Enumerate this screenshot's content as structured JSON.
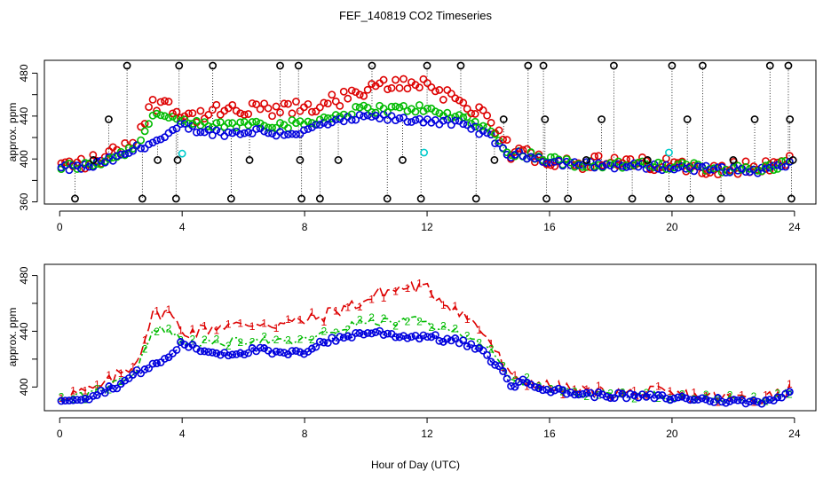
{
  "chart_data": [
    {
      "type": "scatter",
      "title": "FEF_140819  CO2 Timeseries",
      "xlabel": "",
      "ylabel": "approx. ppm",
      "xlim": [
        -0.5,
        24.7
      ],
      "ylim": [
        358,
        492
      ],
      "xticks": [
        0,
        4,
        8,
        12,
        16,
        20,
        24
      ],
      "yticks": [
        360,
        400,
        440,
        480
      ],
      "marker": "open circle",
      "series_colors": {
        "series1": "#dd0000",
        "series2": "#00bb00",
        "series3": "#0000dd",
        "out_of_range": "#000000",
        "flagged": "#00cccc"
      },
      "spike_markers": {
        "high_value": 487,
        "low_value": 363,
        "high_x": [
          2.2,
          3.9,
          5.0,
          7.2,
          7.8,
          10.2,
          12.0,
          13.1,
          15.3,
          15.8,
          18.1,
          20.0,
          21.0,
          23.2,
          23.8
        ],
        "low_x": [
          0.5,
          2.7,
          3.8,
          5.6,
          7.9,
          8.5,
          10.7,
          11.8,
          13.6,
          15.9,
          16.6,
          18.7,
          19.9,
          20.6,
          21.6,
          23.9
        ],
        "mid_points": [
          {
            "x": 1.6,
            "y": 437
          },
          {
            "x": 3.2,
            "y": 399
          },
          {
            "x": 3.85,
            "y": 399
          },
          {
            "x": 6.2,
            "y": 399
          },
          {
            "x": 7.85,
            "y": 399
          },
          {
            "x": 9.1,
            "y": 399
          },
          {
            "x": 11.2,
            "y": 399
          },
          {
            "x": 14.2,
            "y": 399
          },
          {
            "x": 14.5,
            "y": 437
          },
          {
            "x": 15.85,
            "y": 437
          },
          {
            "x": 17.2,
            "y": 399
          },
          {
            "x": 17.7,
            "y": 437
          },
          {
            "x": 19.2,
            "y": 399
          },
          {
            "x": 20.5,
            "y": 437
          },
          {
            "x": 22.0,
            "y": 399
          },
          {
            "x": 22.7,
            "y": 437
          },
          {
            "x": 23.85,
            "y": 437
          },
          {
            "x": 23.95,
            "y": 399
          },
          {
            "x": 1.1,
            "y": 399
          }
        ],
        "cyan_points": [
          {
            "x": 4.0,
            "y": 405
          },
          {
            "x": 11.9,
            "y": 406
          },
          {
            "x": 19.9,
            "y": 406
          }
        ]
      }
    },
    {
      "type": "line",
      "title": "",
      "xlabel": "Hour of Day (UTC)",
      "ylabel": "approx. ppm",
      "xlim": [
        -0.5,
        24.7
      ],
      "ylim": [
        383,
        488
      ],
      "xticks": [
        0,
        4,
        8,
        12,
        16,
        20,
        24
      ],
      "yticks": [
        400,
        440,
        480
      ],
      "series_labels": [
        "1",
        "2",
        "3"
      ],
      "series_colors": [
        "#dd0000",
        "#00bb00",
        "#0000dd"
      ],
      "marker_series3": "open circle"
    }
  ],
  "shared_profile": {
    "x": [
      0.0,
      1.0,
      1.5,
      2.0,
      2.5,
      3.0,
      3.5,
      4.0,
      4.5,
      5.0,
      5.5,
      6.0,
      6.5,
      7.0,
      7.5,
      8.0,
      8.5,
      9.0,
      9.5,
      10.0,
      10.5,
      11.0,
      11.5,
      12.0,
      12.5,
      13.0,
      13.5,
      14.0,
      14.5,
      14.8,
      15.0,
      15.5,
      16.0,
      17.0,
      18.0,
      19.0,
      19.6,
      19.8,
      20.5,
      21.0,
      22.0,
      22.5,
      23.0,
      23.5,
      23.8
    ],
    "series3": [
      391,
      393,
      398,
      402,
      410,
      415,
      420,
      432,
      427,
      425,
      424,
      425,
      427,
      424,
      424,
      425,
      432,
      434,
      437,
      439,
      439,
      437,
      436,
      437,
      434,
      433,
      429,
      422,
      410,
      400,
      404,
      402,
      398,
      395,
      394,
      393,
      393,
      392,
      392,
      391,
      390,
      389,
      390,
      393,
      395
    ],
    "series2": [
      392,
      394,
      399,
      405,
      412,
      440,
      442,
      433,
      432,
      431,
      432,
      433,
      435,
      432,
      432,
      434,
      437,
      440,
      444,
      447,
      447,
      446,
      448,
      446,
      441,
      440,
      436,
      427,
      413,
      402,
      405,
      403,
      399,
      396,
      395,
      394,
      394,
      393,
      393,
      392,
      391,
      390,
      391,
      394,
      396
    ],
    "series1": [
      394,
      397,
      402,
      410,
      418,
      450,
      455,
      440,
      440,
      443,
      445,
      443,
      447,
      445,
      446,
      448,
      450,
      455,
      458,
      462,
      468,
      470,
      472,
      470,
      462,
      456,
      446,
      435,
      415,
      404,
      406,
      403,
      400,
      397,
      396,
      395,
      396,
      394,
      394,
      393,
      392,
      392,
      393,
      396,
      398
    ]
  }
}
